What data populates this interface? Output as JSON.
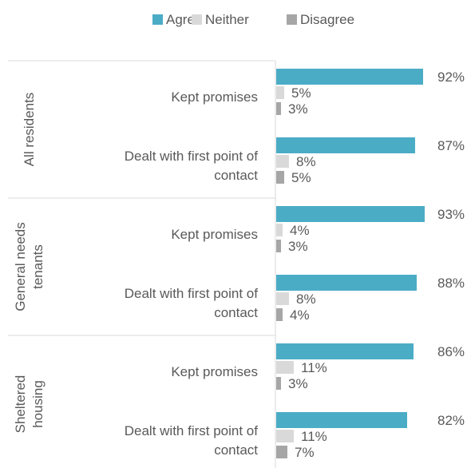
{
  "chart_data": {
    "type": "bar",
    "orientation": "horizontal",
    "legend": {
      "position": "top",
      "items": [
        "Agree",
        "Neither",
        "Disagree"
      ]
    },
    "colors": {
      "Agree": "#4BACC6",
      "Neither": "#D9D9D9",
      "Disagree": "#A6A6A6"
    },
    "xlim": [
      0,
      100
    ],
    "grid": false,
    "groups": [
      {
        "name": "All residents",
        "label_lines": [
          "All residents"
        ],
        "categories": [
          {
            "lines": [
              "Kept promises"
            ],
            "values": [
              92,
              5,
              3
            ],
            "labels": [
              "92%",
              "5%",
              "3%"
            ]
          },
          {
            "lines": [
              "Dealt with first point of",
              "contact"
            ],
            "values": [
              87,
              8,
              5
            ],
            "labels": [
              "87%",
              "8%",
              "5%"
            ]
          }
        ]
      },
      {
        "name": "General needs tenants",
        "label_lines": [
          "General needs",
          "tenants"
        ],
        "categories": [
          {
            "lines": [
              "Kept promises"
            ],
            "values": [
              93,
              4,
              3
            ],
            "labels": [
              "93%",
              "4%",
              "3%"
            ]
          },
          {
            "lines": [
              "Dealt with first point of",
              "contact"
            ],
            "values": [
              88,
              8,
              4
            ],
            "labels": [
              "88%",
              "8%",
              "4%"
            ]
          }
        ]
      },
      {
        "name": "Sheltered housing",
        "label_lines": [
          "Sheltered",
          "housing"
        ],
        "categories": [
          {
            "lines": [
              "Kept promises"
            ],
            "values": [
              86,
              11,
              3
            ],
            "labels": [
              "86%",
              "11%",
              "3%"
            ]
          },
          {
            "lines": [
              "Dealt with first point of",
              "contact"
            ],
            "values": [
              82,
              11,
              7
            ],
            "labels": [
              "82%",
              "11%",
              "7%"
            ]
          }
        ]
      }
    ]
  }
}
